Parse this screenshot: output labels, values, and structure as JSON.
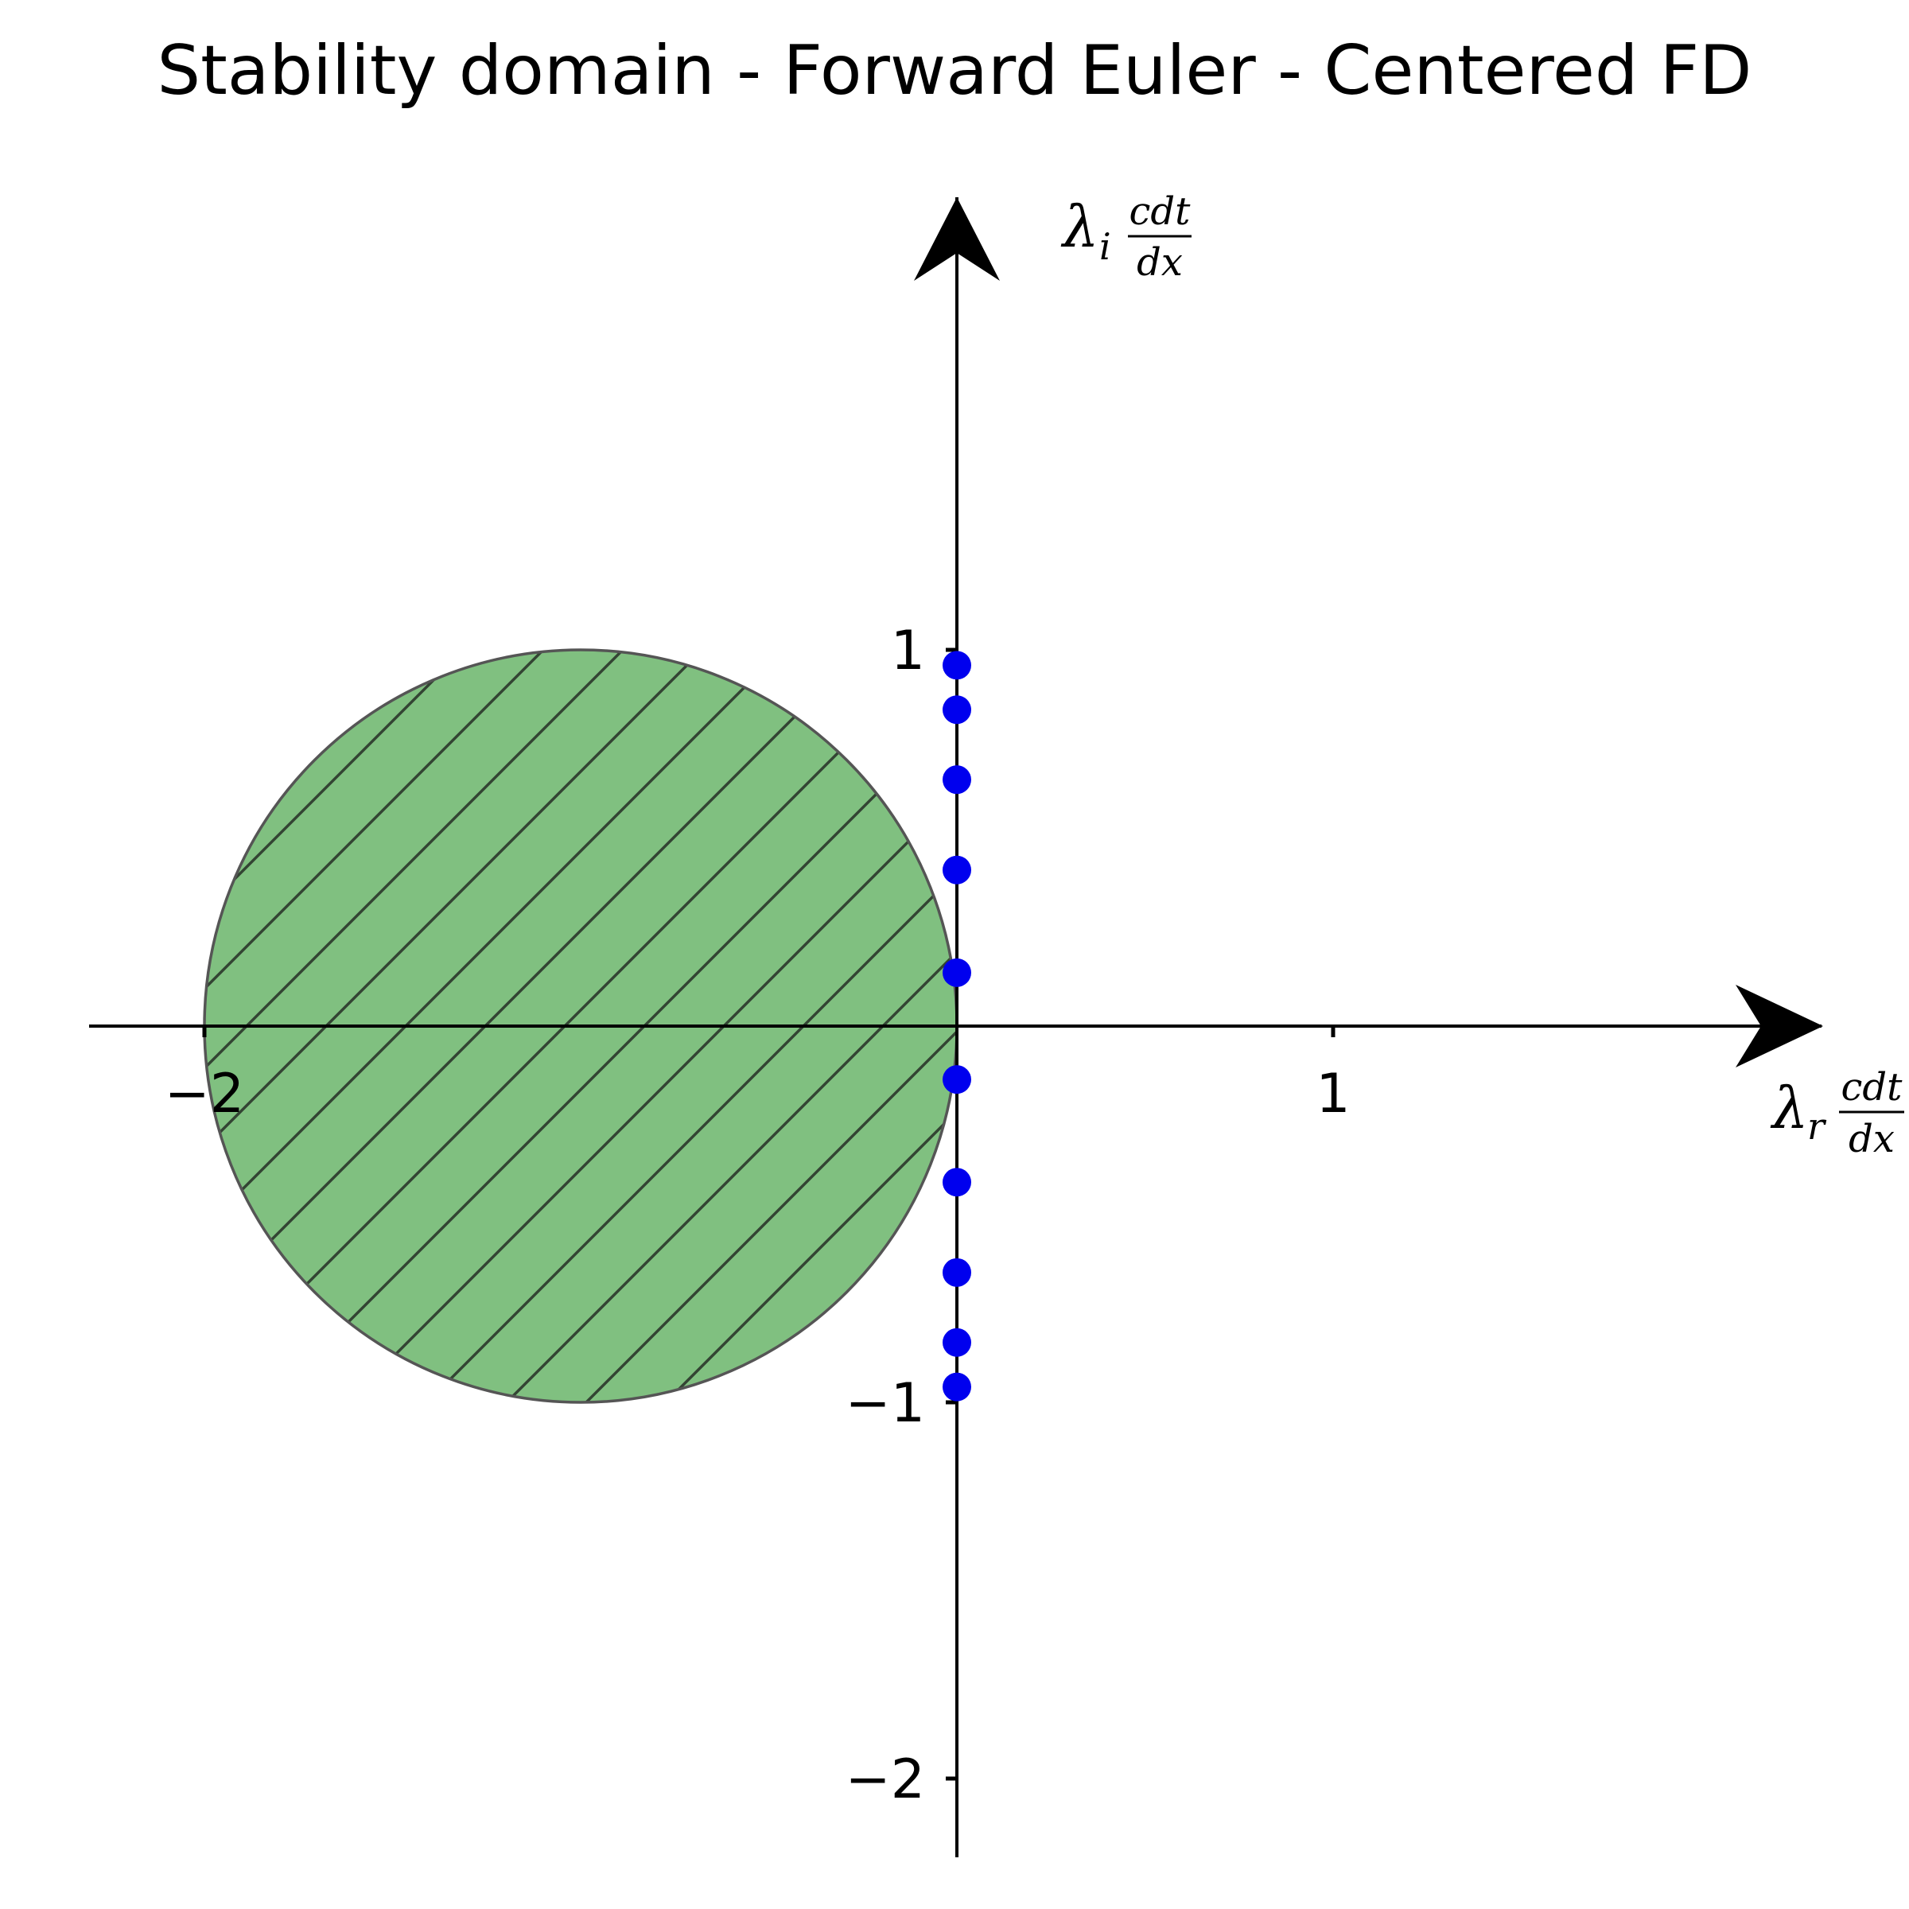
{
  "chart_data": {
    "type": "scatter",
    "title": "Stability domain - Forward Euler - Centered FD",
    "xlabel": {
      "symbol": "λ",
      "sub": "r",
      "numerator": "cdt",
      "denominator": "dx"
    },
    "ylabel": {
      "symbol": "λ",
      "sub": "i",
      "numerator": "cdt",
      "denominator": "dx"
    },
    "xlim": [
      -2.3,
      2.3
    ],
    "ylim": [
      -2.2,
      2.2
    ],
    "x_ticks": [
      {
        "value": -2,
        "label": "−2"
      },
      {
        "value": 1,
        "label": "1"
      }
    ],
    "y_ticks": [
      {
        "value": 1,
        "label": "1"
      },
      {
        "value": -1,
        "label": "−1"
      },
      {
        "value": -2,
        "label": "−2"
      }
    ],
    "stability_region": {
      "shape": "circle",
      "center": [
        -1,
        0
      ],
      "radius": 1,
      "fill_color": "#80c080",
      "edge_color": "#555555",
      "hatch": "diagonal"
    },
    "points": {
      "color": "#0000ee",
      "x": [
        0,
        0,
        0,
        0,
        0,
        0,
        0,
        0,
        0,
        0
      ],
      "y": [
        0.959,
        0.841,
        0.655,
        0.415,
        0.142,
        -0.142,
        -0.415,
        -0.655,
        -0.841,
        -0.959
      ]
    },
    "grid": false,
    "legend": "none"
  }
}
